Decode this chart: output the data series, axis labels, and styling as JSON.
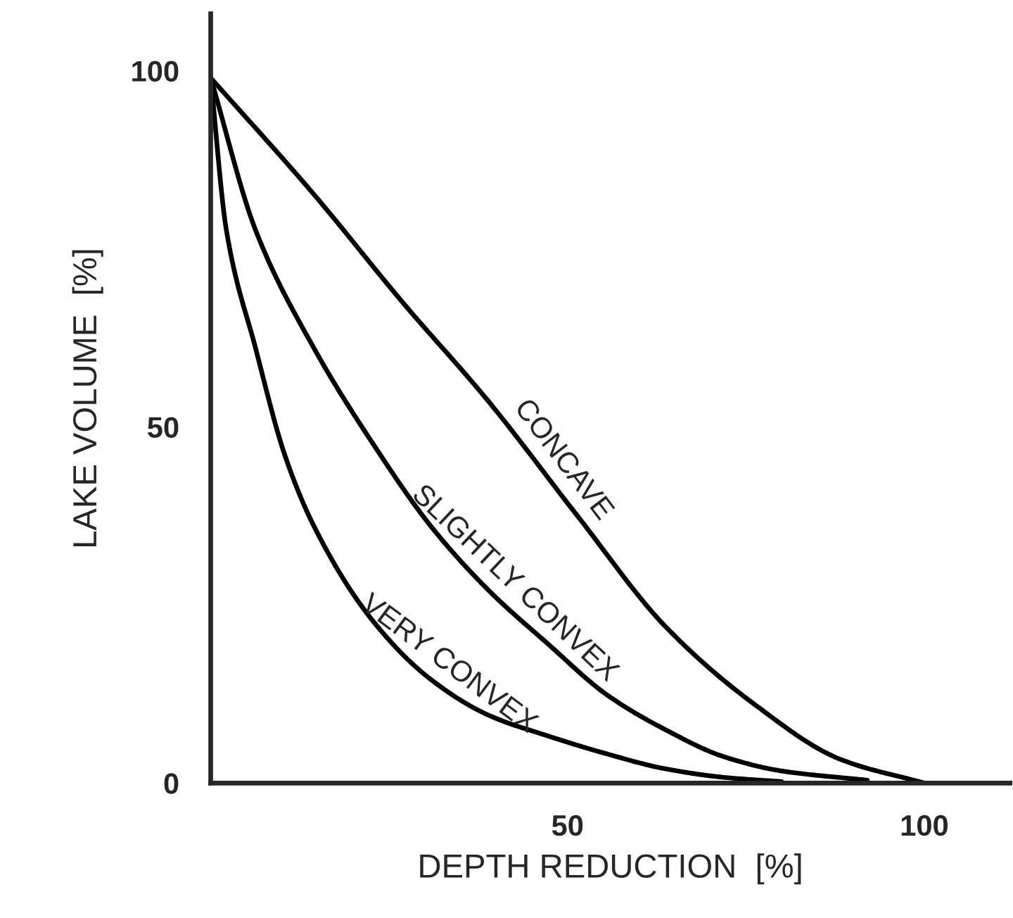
{
  "chart_data": {
    "type": "line",
    "xlabel": "DEPTH REDUCTION  [%]",
    "ylabel": "LAKE VOLUME  [%]",
    "xlim": [
      0,
      112
    ],
    "ylim": [
      0,
      108
    ],
    "xticks": [
      50,
      100
    ],
    "yticks": [
      0,
      50,
      100
    ],
    "grid": false,
    "legend": false,
    "marker": "none",
    "line_style": "solid",
    "series": [
      {
        "color": "#000000",
        "x": [
          0,
          14.5,
          26.8,
          39,
          51.4,
          63.7,
          76,
          88.3,
          100
        ],
        "values": [
          99,
          82.6,
          67.6,
          53.5,
          37.5,
          22,
          11.2,
          3.3,
          0
        ]
      },
      {
        "color": "#000000",
        "x": [
          0,
          6.3,
          14.5,
          22.7,
          30.9,
          39,
          47.3,
          55.5,
          63.7,
          71.9,
          80,
          92
        ],
        "values": [
          99,
          77.6,
          61,
          47.7,
          36,
          27,
          19.5,
          12.4,
          7.5,
          3.7,
          1.7,
          0.4
        ]
      },
      {
        "color": "#000000",
        "x": [
          0,
          2.2,
          6.3,
          10.4,
          14.5,
          22.7,
          30.9,
          39,
          47.3,
          55.5,
          63.7,
          71.9,
          80
        ],
        "values": [
          99,
          77.6,
          61,
          46,
          36,
          22.8,
          14.5,
          9.5,
          6.6,
          4.1,
          2,
          0.8,
          0.2
        ]
      }
    ],
    "annotations": [
      "CONCAVE",
      "SLIGHTLY CONVEX",
      "VERY CONVEX"
    ]
  }
}
